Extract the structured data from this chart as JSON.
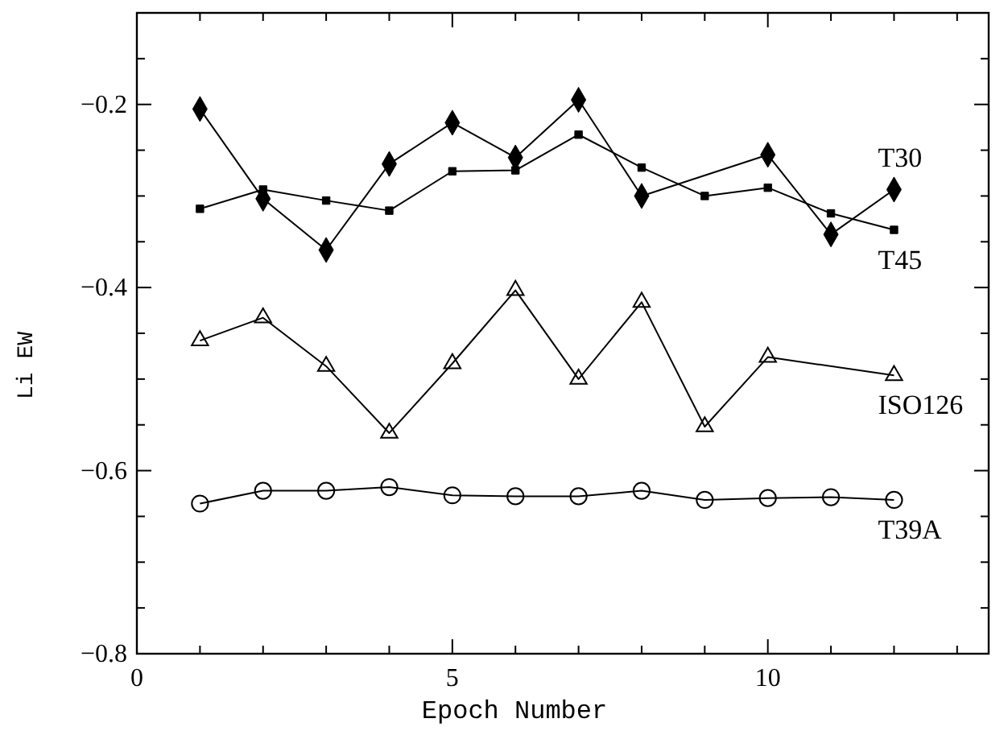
{
  "chart_data": {
    "type": "line",
    "xlabel": "Epoch Number",
    "ylabel": "Li EW",
    "xlim": [
      0,
      13.5
    ],
    "ylim": [
      -0.8,
      -0.1
    ],
    "xticks": [
      0,
      {
        "value": 1,
        "label": null
      },
      {
        "value": 2,
        "label": null
      },
      {
        "value": 3,
        "label": null
      },
      {
        "value": 4,
        "label": null
      },
      5,
      {
        "value": 6,
        "label": null
      },
      {
        "value": 7,
        "label": null
      },
      {
        "value": 8,
        "label": null
      },
      {
        "value": 9,
        "label": null
      },
      10,
      {
        "value": 11,
        "label": null
      },
      {
        "value": 12,
        "label": null
      },
      {
        "value": 13,
        "label": null
      }
    ],
    "yticks": [
      -0.8,
      {
        "value": -0.75,
        "label": null
      },
      {
        "value": -0.7,
        "label": null
      },
      {
        "value": -0.65,
        "label": null
      },
      -0.6,
      {
        "value": -0.55,
        "label": null
      },
      {
        "value": -0.5,
        "label": null
      },
      {
        "value": -0.45,
        "label": null
      },
      -0.4,
      {
        "value": -0.35,
        "label": null
      },
      {
        "value": -0.3,
        "label": null
      },
      {
        "value": -0.25,
        "label": null
      },
      -0.2,
      {
        "value": -0.15,
        "label": null
      },
      {
        "value": -0.1,
        "label": null
      }
    ],
    "grid": false,
    "legend": "right",
    "line_style": "solid",
    "series": [
      {
        "name": "T30",
        "color": "#000000",
        "marker": "diamond",
        "x": [
          1,
          2,
          3,
          4,
          5,
          6,
          7,
          8,
          10,
          11,
          12
        ],
        "values": [
          -0.205,
          -0.303,
          -0.359,
          -0.265,
          -0.22,
          -0.258,
          -0.195,
          -0.3,
          -0.255,
          -0.342,
          -0.293
        ]
      },
      {
        "name": "T45",
        "color": "#000000",
        "marker": "square",
        "x": [
          1,
          2,
          3,
          4,
          5,
          6,
          7,
          8,
          9,
          10,
          11,
          12
        ],
        "values": [
          -0.314,
          -0.293,
          -0.305,
          -0.316,
          -0.273,
          -0.272,
          -0.233,
          -0.269,
          -0.3,
          -0.291,
          -0.319,
          -0.337
        ]
      },
      {
        "name": "ISO126",
        "color": "#000000",
        "marker": "triangle",
        "x": [
          1,
          2,
          3,
          4,
          5,
          6,
          7,
          8,
          9,
          10,
          12
        ],
        "values": [
          -0.458,
          -0.433,
          -0.486,
          -0.559,
          -0.483,
          -0.403,
          -0.5,
          -0.416,
          -0.552,
          -0.476,
          -0.496
        ]
      },
      {
        "name": "T39A",
        "color": "#000000",
        "marker": "circle",
        "x": [
          1,
          2,
          3,
          4,
          5,
          6,
          7,
          8,
          9,
          10,
          11,
          12
        ],
        "values": [
          -0.636,
          -0.622,
          -0.622,
          -0.618,
          -0.627,
          -0.628,
          -0.628,
          -0.622,
          -0.632,
          -0.63,
          -0.629,
          -0.632
        ]
      }
    ]
  }
}
